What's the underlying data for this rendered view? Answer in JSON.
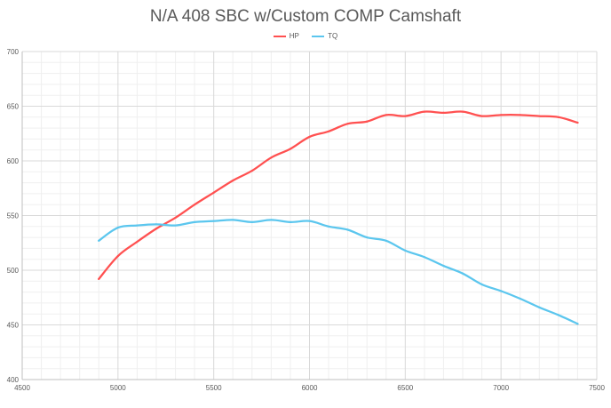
{
  "chart_data": {
    "type": "scatter",
    "title": "N/A 408 SBC w/Custom COMP Camshaft",
    "xlabel": "",
    "ylabel": "",
    "xlim": [
      4500,
      7500
    ],
    "ylim": [
      400,
      700
    ],
    "x_ticks": [
      "4500",
      "5000",
      "5500",
      "6000",
      "6500",
      "7000",
      "7500"
    ],
    "y_ticks": [
      "400",
      "450",
      "500",
      "550",
      "600",
      "650",
      "700"
    ],
    "grid": true,
    "legend_position": "top",
    "series": [
      {
        "name": "HP",
        "color": "#ff5050",
        "x": [
          4900,
          5000,
          5100,
          5200,
          5300,
          5400,
          5500,
          5600,
          5700,
          5800,
          5900,
          6000,
          6100,
          6200,
          6300,
          6400,
          6500,
          6600,
          6700,
          6800,
          6900,
          7000,
          7100,
          7200,
          7300,
          7400
        ],
        "y": [
          492,
          513,
          526,
          538,
          548,
          560,
          571,
          582,
          591,
          603,
          611,
          622,
          627,
          634,
          636,
          642,
          641,
          645,
          644,
          645,
          641,
          642,
          642,
          641,
          640,
          635
        ]
      },
      {
        "name": "TQ",
        "color": "#5bc6ee",
        "x": [
          4900,
          5000,
          5100,
          5200,
          5300,
          5400,
          5500,
          5600,
          5700,
          5800,
          5900,
          6000,
          6100,
          6200,
          6300,
          6400,
          6500,
          6600,
          6700,
          6800,
          6900,
          7000,
          7100,
          7200,
          7300,
          7400
        ],
        "y": [
          527,
          539,
          541,
          542,
          541,
          544,
          545,
          546,
          544,
          546,
          544,
          545,
          540,
          537,
          530,
          527,
          518,
          512,
          504,
          497,
          487,
          481,
          474,
          466,
          459,
          451
        ]
      }
    ]
  }
}
